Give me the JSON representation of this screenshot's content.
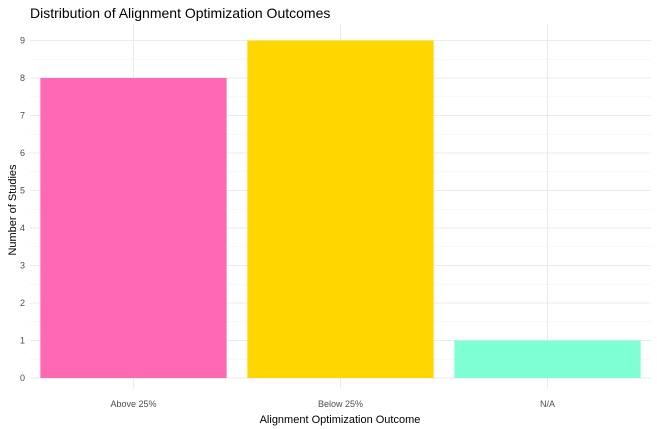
{
  "chart_data": {
    "type": "bar",
    "title": "Distribution of Alignment Optimization Outcomes",
    "xlabel": "Alignment Optimization Outcome",
    "ylabel": "Number of Studies",
    "categories": [
      "Above 25%",
      "Below 25%",
      "N/A"
    ],
    "values": [
      8,
      9,
      1
    ],
    "colors": [
      "#FF69B4",
      "#FFD700",
      "#7FFFD4"
    ],
    "ylim": [
      0,
      9.4
    ],
    "yticks": [
      "0",
      "1",
      "2",
      "3",
      "4",
      "5",
      "6",
      "7",
      "8",
      "9"
    ],
    "grid": true,
    "legend": "none"
  }
}
